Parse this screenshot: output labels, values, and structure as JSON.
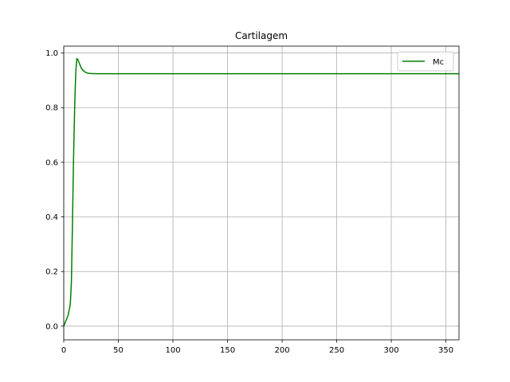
{
  "chart_data": {
    "type": "line",
    "title": "Cartilagem",
    "xlabel": "",
    "ylabel": "",
    "xlim": [
      0,
      362
    ],
    "ylim": [
      -0.05,
      1.025
    ],
    "xticks": [
      0,
      50,
      100,
      150,
      200,
      250,
      300,
      350
    ],
    "yticks": [
      0.0,
      0.2,
      0.4,
      0.6,
      0.8,
      1.0
    ],
    "xtick_labels": [
      "0",
      "50",
      "100",
      "150",
      "200",
      "250",
      "300",
      "350"
    ],
    "ytick_labels": [
      "0.0",
      "0.2",
      "0.4",
      "0.6",
      "0.8",
      "1.0"
    ],
    "grid": true,
    "legend_position": "top-right",
    "series": [
      {
        "name": "Mc",
        "color": "#008000",
        "x": [
          0,
          2,
          4,
          6,
          7,
          8,
          9,
          10,
          11,
          12,
          13,
          14,
          15,
          16,
          18,
          20,
          22,
          25,
          30,
          40,
          50,
          100,
          150,
          200,
          250,
          300,
          362
        ],
        "y": [
          0.0,
          0.02,
          0.04,
          0.08,
          0.16,
          0.38,
          0.62,
          0.8,
          0.93,
          0.98,
          0.975,
          0.965,
          0.955,
          0.945,
          0.935,
          0.929,
          0.926,
          0.925,
          0.924,
          0.924,
          0.924,
          0.924,
          0.924,
          0.924,
          0.924,
          0.924,
          0.924
        ]
      }
    ]
  }
}
